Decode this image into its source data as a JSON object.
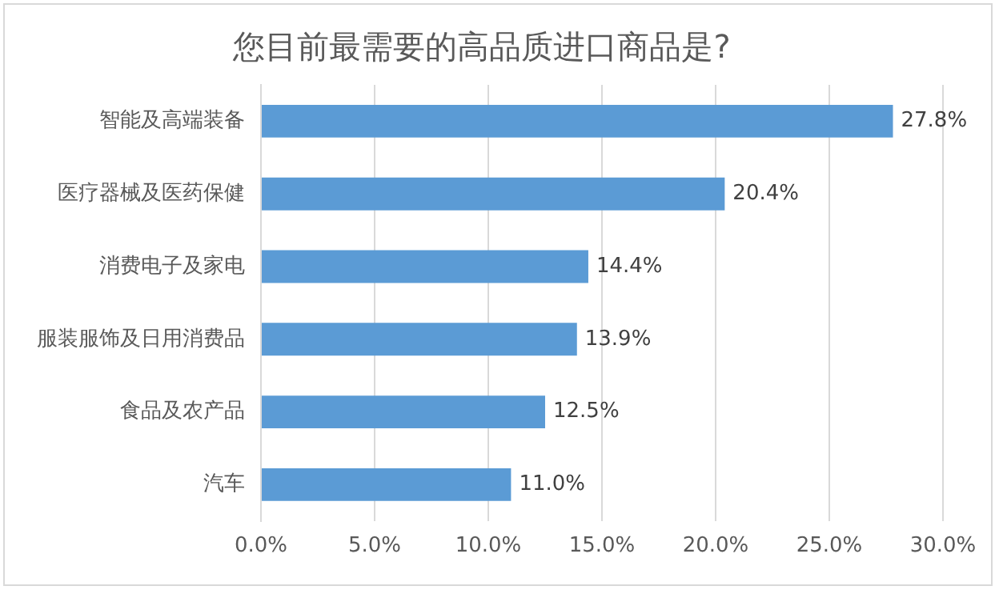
{
  "chart_data": {
    "type": "bar",
    "orientation": "horizontal",
    "title": "您目前最需要的高品质进口商品是?",
    "categories": [
      "智能及高端装备",
      "医疗器械及医药保健",
      "消费电子及家电",
      "服装服饰及日用消费品",
      "食品及农产品",
      "汽车"
    ],
    "values": [
      27.8,
      20.4,
      14.4,
      13.9,
      12.5,
      11.0
    ],
    "value_labels": [
      "27.8%",
      "20.4%",
      "14.4%",
      "13.9%",
      "12.5%",
      "11.0%"
    ],
    "color": "#5b9bd5",
    "xlim": [
      0,
      30
    ],
    "xticks": [
      {
        "value": 0,
        "label": "0.0%"
      },
      {
        "value": 5,
        "label": "5.0%"
      },
      {
        "value": 10,
        "label": "10.0%"
      },
      {
        "value": 15,
        "label": "15.0%"
      },
      {
        "value": 20,
        "label": "20.0%"
      },
      {
        "value": 25,
        "label": "25.0%"
      },
      {
        "value": 30,
        "label": "30.0%"
      }
    ],
    "grid": "x",
    "legend": false
  }
}
